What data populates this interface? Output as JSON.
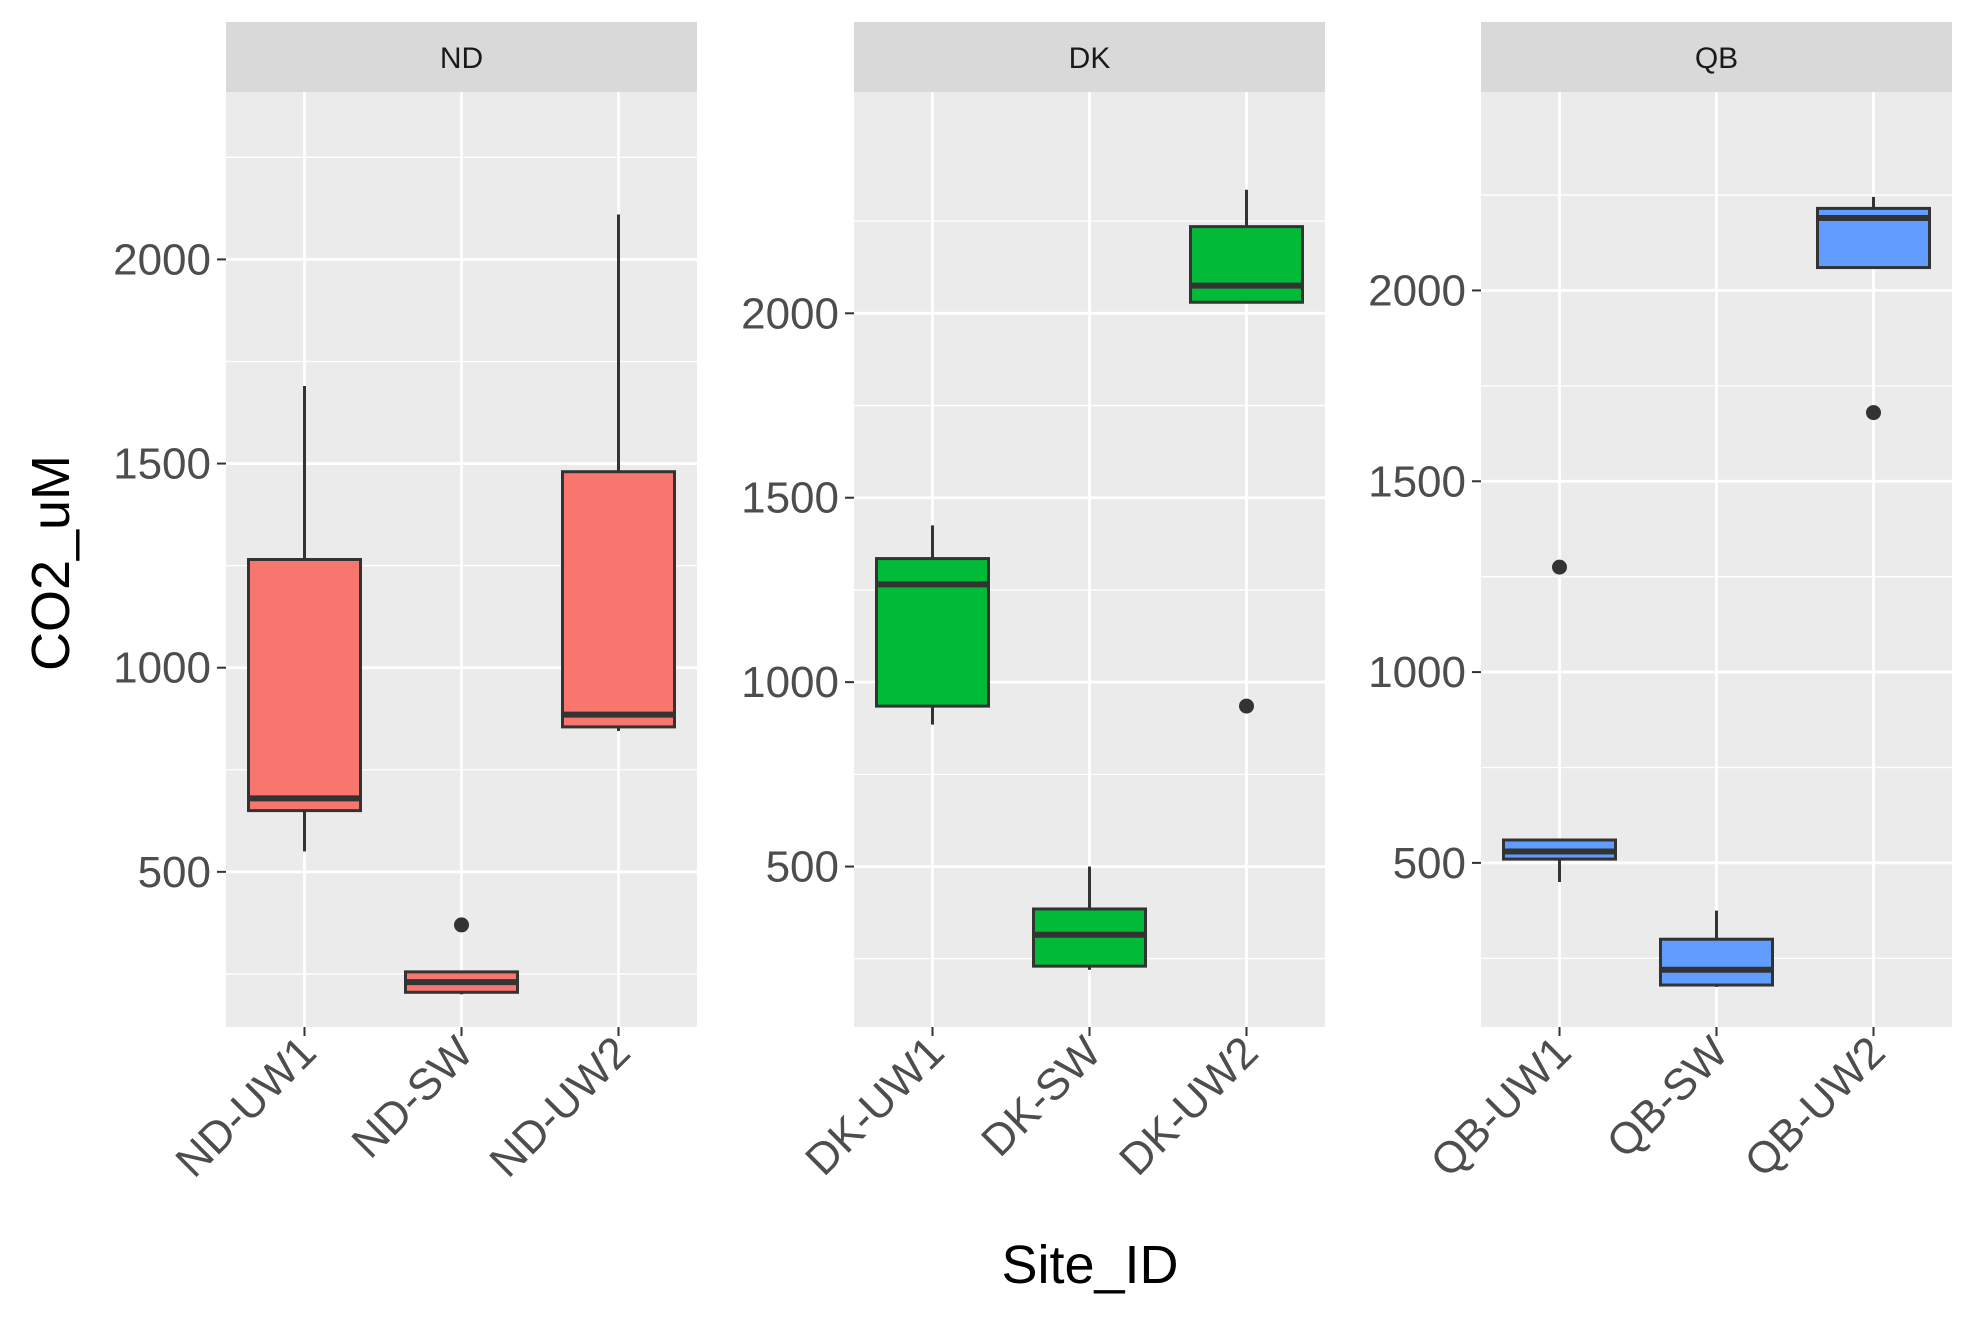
{
  "chart_data": {
    "type": "boxplot",
    "xlabel": "Site_ID",
    "ylabel": "CO2_uM",
    "grid": true,
    "legend": "none",
    "facets": [
      {
        "name": "ND",
        "color": "#F8766D",
        "ylim": [
          120,
          2410
        ],
        "yticks": [
          500,
          1000,
          1500,
          2000
        ],
        "categories": [
          "ND-UW1",
          "ND-SW",
          "ND-UW2"
        ],
        "boxes": [
          {
            "min": 550,
            "q1": 650,
            "median": 680,
            "q3": 1265,
            "max": 1690,
            "outliers": []
          },
          {
            "min": 200,
            "q1": 205,
            "median": 230,
            "q3": 255,
            "max": 255,
            "outliers": [
              370
            ]
          },
          {
            "min": 845,
            "q1": 855,
            "median": 885,
            "q3": 1480,
            "max": 2110,
            "outliers": []
          }
        ]
      },
      {
        "name": "DK",
        "color": "#00BA38",
        "ylim": [
          65,
          2600
        ],
        "yticks": [
          500,
          1000,
          1500,
          2000
        ],
        "categories": [
          "DK-UW1",
          "DK-SW",
          "DK-UW2"
        ],
        "boxes": [
          {
            "min": 885,
            "q1": 935,
            "median": 1265,
            "q3": 1335,
            "max": 1425,
            "outliers": []
          },
          {
            "min": 220,
            "q1": 230,
            "median": 315,
            "q3": 385,
            "max": 500,
            "outliers": []
          },
          {
            "min": 2030,
            "q1": 2030,
            "median": 2075,
            "q3": 2235,
            "max": 2335,
            "outliers": [
              935
            ]
          }
        ]
      },
      {
        "name": "QB",
        "color": "#619CFF",
        "ylim": [
          70,
          2520
        ],
        "yticks": [
          500,
          1000,
          1500,
          2000
        ],
        "categories": [
          "QB-UW1",
          "QB-SW",
          "QB-UW2"
        ],
        "boxes": [
          {
            "min": 450,
            "q1": 510,
            "median": 530,
            "q3": 560,
            "max": 560,
            "outliers": [
              1275
            ]
          },
          {
            "min": 175,
            "q1": 180,
            "median": 220,
            "q3": 300,
            "max": 375,
            "outliers": []
          },
          {
            "min": 2060,
            "q1": 2060,
            "median": 2190,
            "q3": 2215,
            "max": 2245,
            "outliers": [
              1680
            ]
          }
        ]
      }
    ]
  }
}
